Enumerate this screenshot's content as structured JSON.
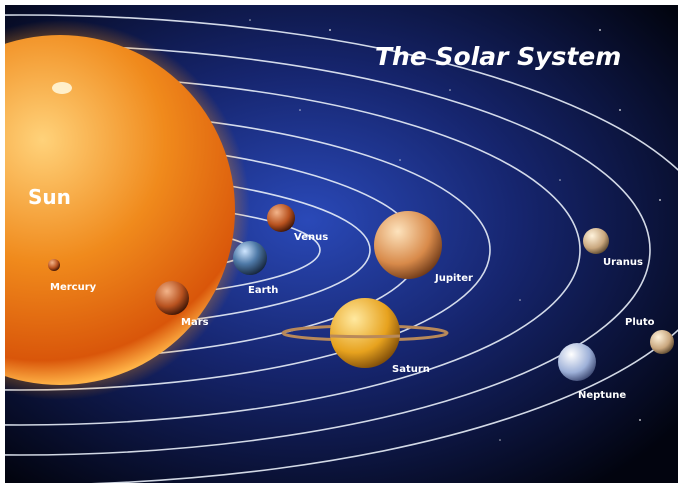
{
  "title": "The Solar System",
  "bodies": [
    {
      "label": "Sun"
    },
    {
      "label": "Mercury"
    },
    {
      "label": "Venus"
    },
    {
      "label": "Earth"
    },
    {
      "label": "Mars"
    },
    {
      "label": "Jupiter"
    },
    {
      "label": "Saturn"
    },
    {
      "label": "Uranus"
    },
    {
      "label": "Neptune"
    },
    {
      "label": "Pluto"
    }
  ]
}
